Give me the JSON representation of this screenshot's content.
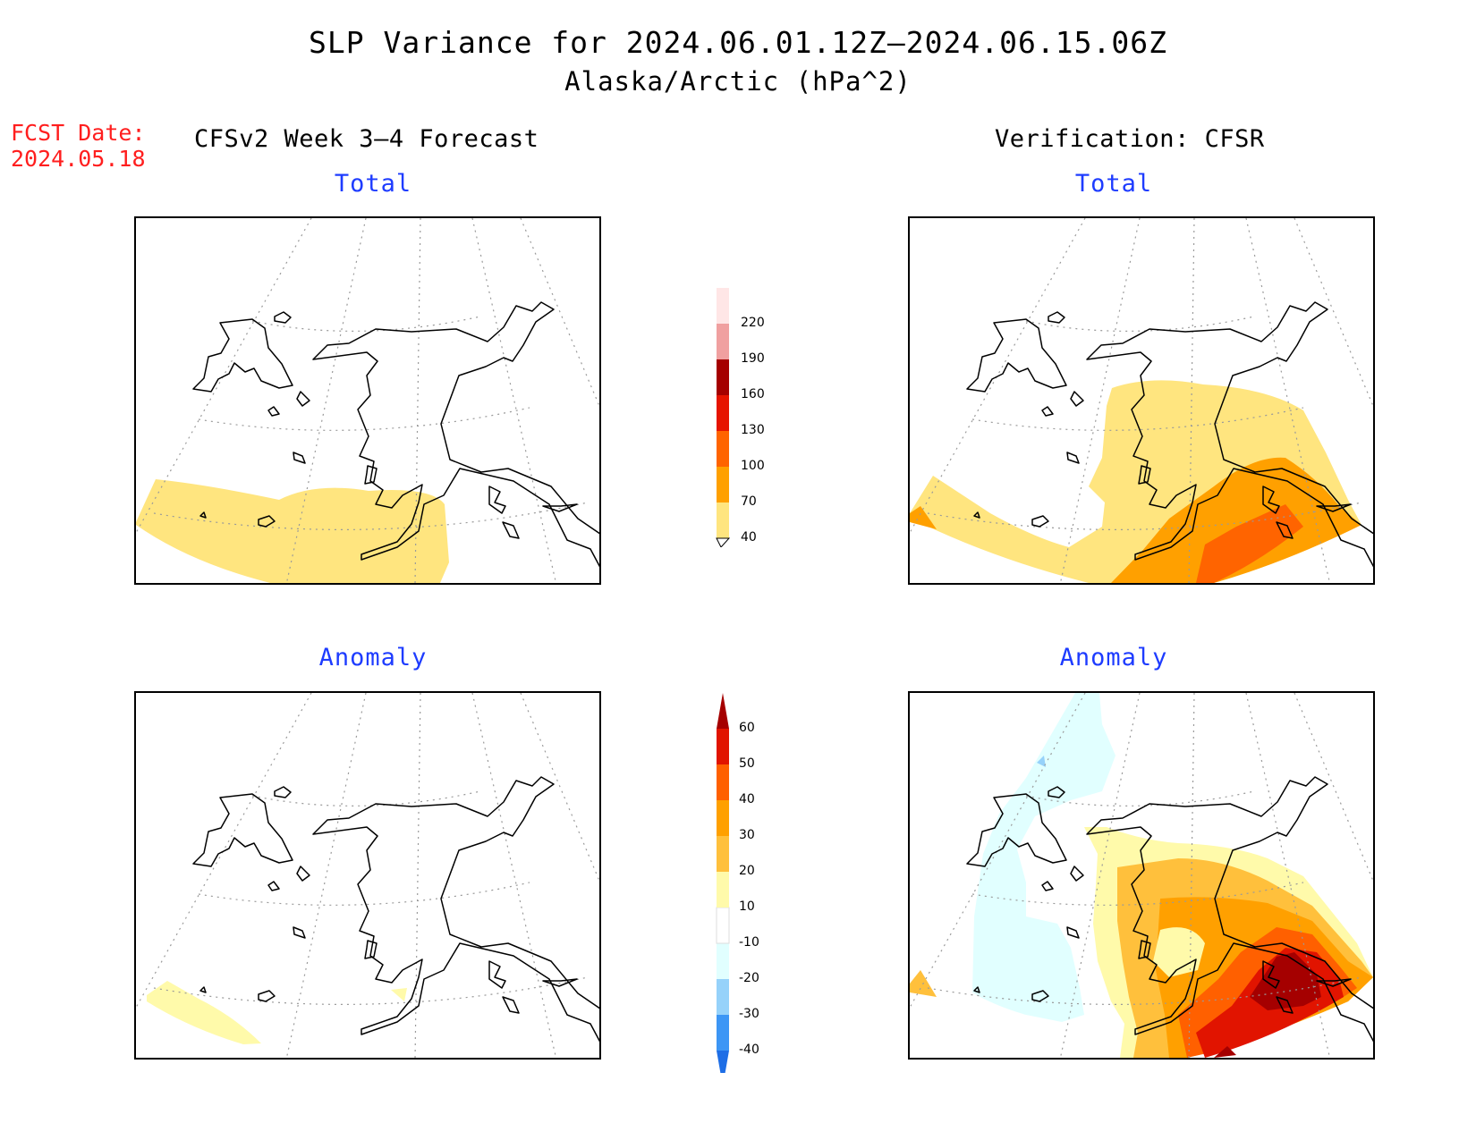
{
  "title": {
    "line1": "SLP Variance for 2024.06.01.12Z—2024.06.15.06Z",
    "line2": "Alaska/Arctic (hPa^2)"
  },
  "fcst_date": {
    "label": "FCST Date:",
    "value": "2024.05.18"
  },
  "columns": {
    "left": "CFSv2 Week 3—4 Forecast",
    "right": "Verification: CFSR"
  },
  "panels": {
    "forecast_total": "Total",
    "forecast_anomaly": "Anomaly",
    "verification_total": "Total",
    "verification_anomaly": "Anomaly"
  },
  "colorbar_total": {
    "labels": [
      "40",
      "70",
      "100",
      "130",
      "160",
      "190",
      "220"
    ],
    "colors": [
      "#ffe57f",
      "#ffa000",
      "#ff6400",
      "#e61400",
      "#a50000",
      "#f0a0a0",
      "#ffe6e6"
    ]
  },
  "colorbar_anomaly": {
    "labels": [
      "-40",
      "-30",
      "-20",
      "-10",
      "10",
      "20",
      "30",
      "40",
      "50",
      "60"
    ],
    "colors": [
      "#1e6ee6",
      "#3c96f5",
      "#96d2fa",
      "#e1ffff",
      "#ffffff",
      "#fffaaa",
      "#ffc03c",
      "#ffa000",
      "#ff6000",
      "#e11400",
      "#a50000"
    ]
  }
}
